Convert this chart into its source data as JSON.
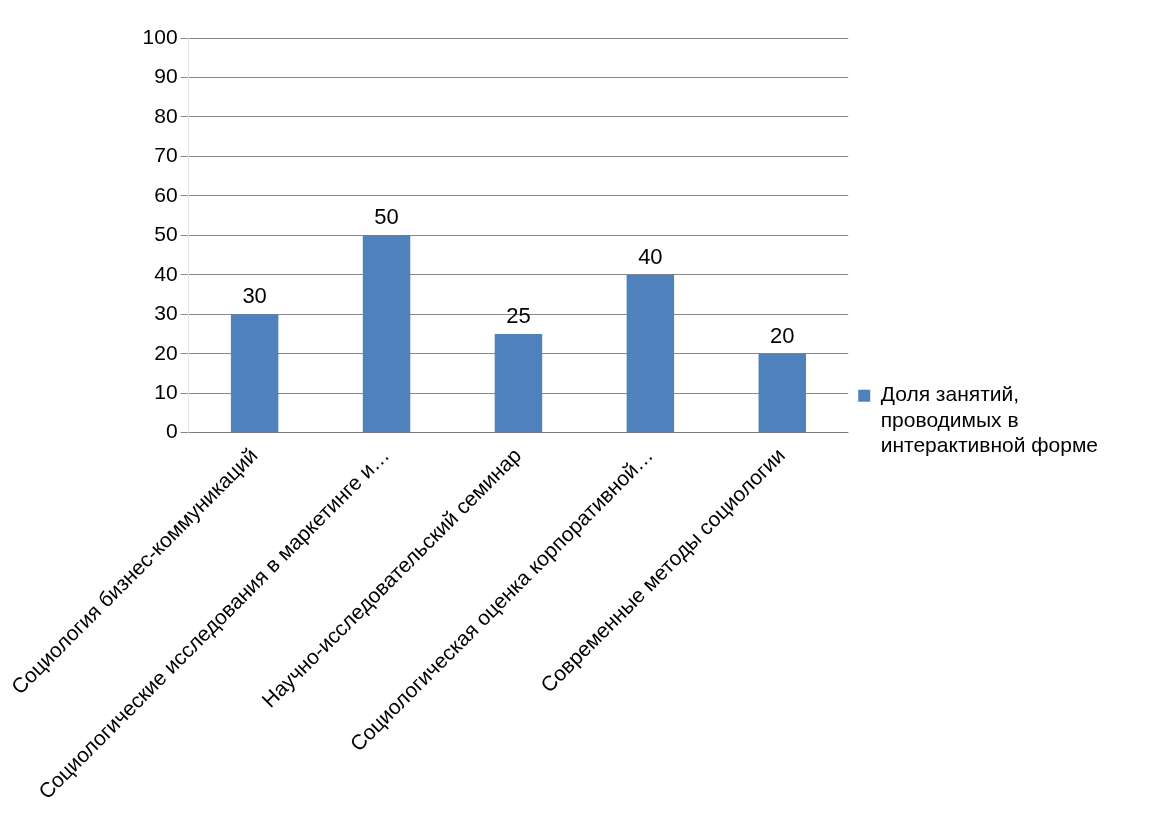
{
  "chart_data": {
    "type": "bar",
    "categories": [
      "Социология бизнес-коммуникаций",
      "Социологические исследования в маркетинге и…",
      "Научно-исследовательский семинар",
      "Социологическая оценка корпоративной…",
      "Современные методы социологии"
    ],
    "series": [
      {
        "name": "Доля занятий, проводимых в интерактивной форме",
        "color": "#4f81bd",
        "values": [
          30,
          50,
          25,
          40,
          20
        ]
      }
    ],
    "ylim": [
      0,
      100
    ],
    "yticks": [
      0,
      10,
      20,
      30,
      40,
      50,
      60,
      70,
      80,
      90,
      100
    ],
    "grid": "y",
    "legend": "right",
    "data_labels": true
  }
}
